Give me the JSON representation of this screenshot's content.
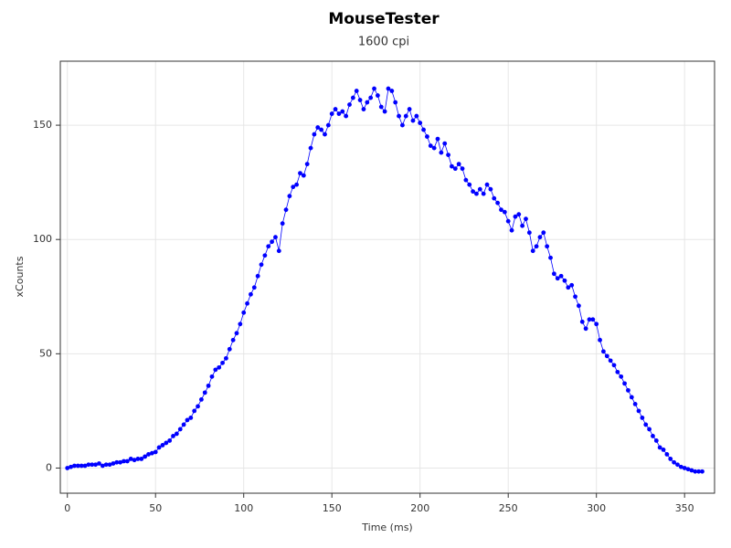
{
  "chart_data": {
    "type": "scatter",
    "title": "MouseTester",
    "subtitle": "1600 cpi",
    "x_label": "Time (ms)",
    "y_label": "xCounts",
    "color": "#0000ff",
    "connect": true,
    "grid": true,
    "xlim": [
      -4,
      367
    ],
    "ylim": [
      -11,
      178
    ],
    "xticks": [
      0,
      50,
      100,
      150,
      200,
      250,
      300,
      350
    ],
    "yticks": [
      0,
      50,
      100,
      150
    ],
    "x": [
      0,
      2,
      4,
      6,
      8,
      10,
      12,
      14,
      16,
      18,
      20,
      22,
      24,
      26,
      28,
      30,
      32,
      34,
      36,
      38,
      40,
      42,
      44,
      46,
      48,
      50,
      52,
      54,
      56,
      58,
      60,
      62,
      64,
      66,
      68,
      70,
      72,
      74,
      76,
      78,
      80,
      82,
      84,
      86,
      88,
      90,
      92,
      94,
      96,
      98,
      100,
      102,
      104,
      106,
      108,
      110,
      112,
      114,
      116,
      118,
      120,
      122,
      124,
      126,
      128,
      130,
      132,
      134,
      136,
      138,
      140,
      142,
      144,
      146,
      148,
      150,
      152,
      154,
      156,
      158,
      160,
      162,
      164,
      166,
      168,
      170,
      172,
      174,
      176,
      178,
      180,
      182,
      184,
      186,
      188,
      190,
      192,
      194,
      196,
      198,
      200,
      202,
      204,
      206,
      208,
      210,
      212,
      214,
      216,
      218,
      220,
      222,
      224,
      226,
      228,
      230,
      232,
      234,
      236,
      238,
      240,
      242,
      244,
      246,
      248,
      250,
      252,
      254,
      256,
      258,
      260,
      262,
      264,
      266,
      268,
      270,
      272,
      274,
      276,
      278,
      280,
      282,
      284,
      286,
      288,
      290,
      292,
      294,
      296,
      298,
      300,
      302,
      304,
      306,
      308,
      310,
      312,
      314,
      316,
      318,
      320,
      322,
      324,
      326,
      328,
      330,
      332,
      334,
      336,
      338,
      340,
      342,
      344,
      346,
      348,
      350,
      352,
      354,
      356,
      358,
      360
    ],
    "values": [
      0,
      0.5,
      1,
      1,
      1,
      1,
      1.5,
      1.5,
      1.5,
      2,
      1,
      1.5,
      1.5,
      2,
      2.5,
      2.5,
      3,
      3,
      4,
      3.5,
      4,
      4,
      5,
      6,
      6.5,
      7,
      9,
      10,
      11,
      12,
      14,
      15,
      17,
      19,
      21,
      22,
      25,
      27,
      30,
      33,
      36,
      40,
      43,
      44,
      46,
      48,
      52,
      56,
      59,
      63,
      68,
      72,
      76,
      79,
      84,
      89,
      93,
      97,
      99,
      101,
      95,
      107,
      113,
      119,
      123,
      124,
      129,
      128,
      133,
      140,
      146,
      149,
      148,
      146,
      150,
      155,
      157,
      155,
      156,
      154,
      159,
      162,
      165,
      161,
      157,
      160,
      162,
      166,
      163,
      158,
      156,
      166,
      165,
      160,
      154,
      150,
      154,
      157,
      152,
      154,
      151,
      148,
      145,
      141,
      140,
      144,
      138,
      142,
      137,
      132,
      131,
      133,
      131,
      126,
      124,
      121,
      120,
      122,
      120,
      124,
      122,
      118,
      116,
      113,
      112,
      108,
      104,
      110,
      111,
      106,
      109,
      103,
      95,
      97,
      101,
      103,
      97,
      92,
      85,
      83,
      84,
      82,
      79,
      80,
      75,
      71,
      64,
      61,
      65,
      65,
      63,
      56,
      51,
      49,
      47,
      45,
      42,
      40,
      37,
      34,
      31,
      28,
      25,
      22,
      19,
      17,
      14,
      12,
      9,
      8,
      6,
      4,
      2.5,
      1.5,
      0.5,
      0,
      -0.5,
      -1,
      -1.5,
      -1.5,
      -1.5
    ]
  }
}
